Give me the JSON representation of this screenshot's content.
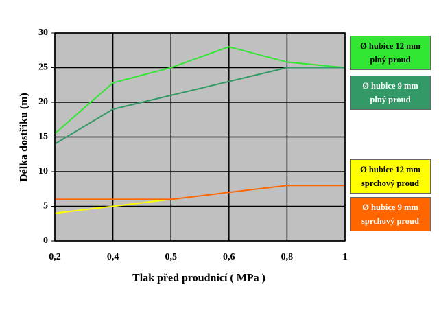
{
  "chart_data": {
    "type": "line",
    "y_label": "Délka dostřiku (m)",
    "x_label": "Tlak před proudnicí  ( MPa )",
    "categories": [
      "0,2",
      "0,4",
      "0,5",
      "0,6",
      "0,8",
      "1"
    ],
    "ylim": [
      0,
      30
    ],
    "yticks": [
      0,
      5,
      10,
      15,
      20,
      25,
      30
    ],
    "grid": true,
    "plot_background": "#c0c0c0",
    "series": [
      {
        "name": "Ø hubice 12 mm plný proud",
        "color": "#33e633",
        "values": [
          15.5,
          22.8,
          25,
          28,
          25.8,
          25
        ]
      },
      {
        "name": "Ø hubice 9 mm plný proud",
        "color": "#339966",
        "values": [
          14,
          19,
          21,
          23,
          25,
          25
        ]
      },
      {
        "name": "Ø hubice 12 mm sprchový proud",
        "color": "#ffff00",
        "values": [
          4,
          5,
          6,
          null,
          null,
          null
        ]
      },
      {
        "name": "Ø hubice 9 mm sprchový proud",
        "color": "#ff6600",
        "values": [
          6,
          6,
          6,
          7,
          8,
          8
        ]
      }
    ]
  }
}
